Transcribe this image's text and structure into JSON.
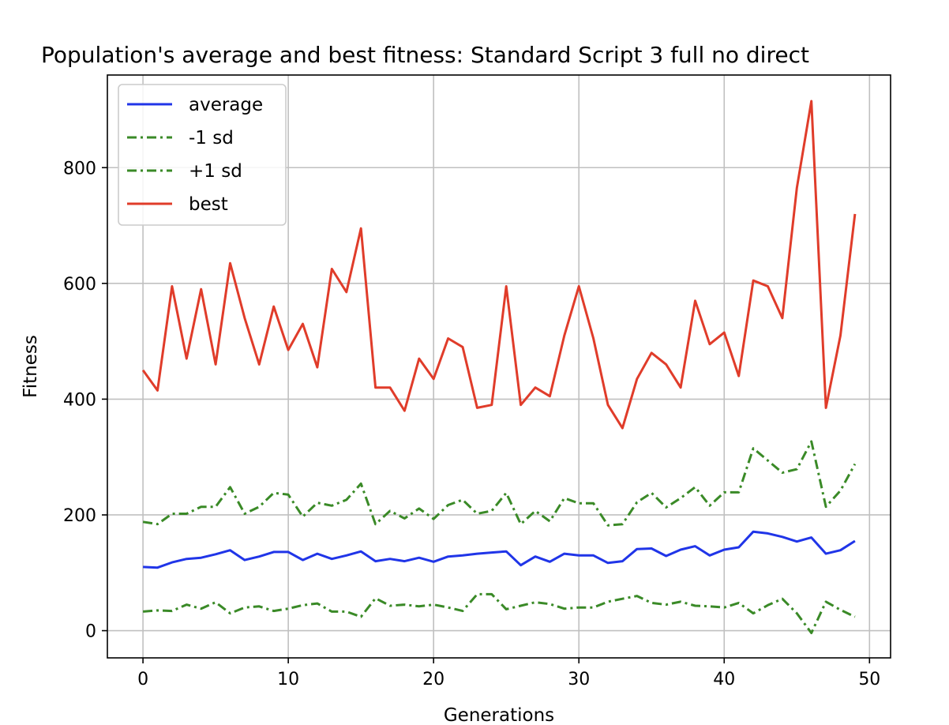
{
  "chart_data": {
    "type": "line",
    "title": "Population's average and best fitness: Standard Script 3 full no direct",
    "xlabel": "Generations",
    "ylabel": "Fitness",
    "xlim": [
      -2.45,
      51.45
    ],
    "ylim": [
      -47,
      960
    ],
    "xticks": [
      0,
      10,
      20,
      30,
      40,
      50
    ],
    "yticks": [
      0,
      200,
      400,
      600,
      800
    ],
    "grid": true,
    "legend_position": "upper left",
    "x": [
      0,
      1,
      2,
      3,
      4,
      5,
      6,
      7,
      8,
      9,
      10,
      11,
      12,
      13,
      14,
      15,
      16,
      17,
      18,
      19,
      20,
      21,
      22,
      23,
      24,
      25,
      26,
      27,
      28,
      29,
      30,
      31,
      32,
      33,
      34,
      35,
      36,
      37,
      38,
      39,
      40,
      41,
      42,
      43,
      44,
      45,
      46,
      47,
      48,
      49
    ],
    "series": [
      {
        "name": "average",
        "color": "#2035e8",
        "style": "solid",
        "values": [
          110,
          109,
          118,
          124,
          126,
          132,
          139,
          122,
          128,
          136,
          136,
          122,
          133,
          124,
          130,
          137,
          120,
          124,
          120,
          126,
          119,
          128,
          130,
          133,
          135,
          137,
          113,
          128,
          119,
          133,
          130,
          130,
          117,
          120,
          141,
          142,
          129,
          140,
          146,
          130,
          140,
          144,
          171,
          168,
          162,
          154,
          161,
          133,
          139,
          155
        ]
      },
      {
        "name": "-1 sd",
        "color": "#3a8a27",
        "style": "dashdot",
        "values": [
          33,
          35,
          34,
          45,
          38,
          49,
          30,
          40,
          42,
          34,
          38,
          44,
          47,
          33,
          33,
          24,
          56,
          43,
          45,
          42,
          45,
          40,
          34,
          63,
          63,
          37,
          43,
          49,
          46,
          38,
          40,
          40,
          50,
          55,
          60,
          48,
          45,
          50,
          43,
          42,
          40,
          48,
          30,
          44,
          55,
          30,
          -4,
          50,
          36,
          24
        ]
      },
      {
        "name": "+1 sd",
        "color": "#3a8a27",
        "style": "dashdot",
        "values": [
          188,
          184,
          202,
          202,
          214,
          214,
          248,
          202,
          214,
          238,
          235,
          197,
          221,
          216,
          226,
          254,
          184,
          207,
          194,
          211,
          193,
          217,
          226,
          202,
          207,
          238,
          184,
          207,
          189,
          229,
          220,
          220,
          182,
          184,
          222,
          238,
          213,
          229,
          248,
          216,
          239,
          239,
          315,
          294,
          273,
          279,
          327,
          214,
          242,
          288
        ]
      },
      {
        "name": "best",
        "color": "#e03c2a",
        "style": "solid",
        "values": [
          450,
          415,
          595,
          470,
          590,
          460,
          635,
          540,
          460,
          560,
          485,
          530,
          455,
          625,
          585,
          695,
          420,
          420,
          380,
          470,
          435,
          505,
          490,
          385,
          390,
          595,
          390,
          420,
          405,
          510,
          595,
          505,
          390,
          350,
          435,
          480,
          460,
          420,
          570,
          495,
          515,
          440,
          605,
          595,
          540,
          765,
          915,
          385,
          510,
          720
        ]
      }
    ]
  }
}
